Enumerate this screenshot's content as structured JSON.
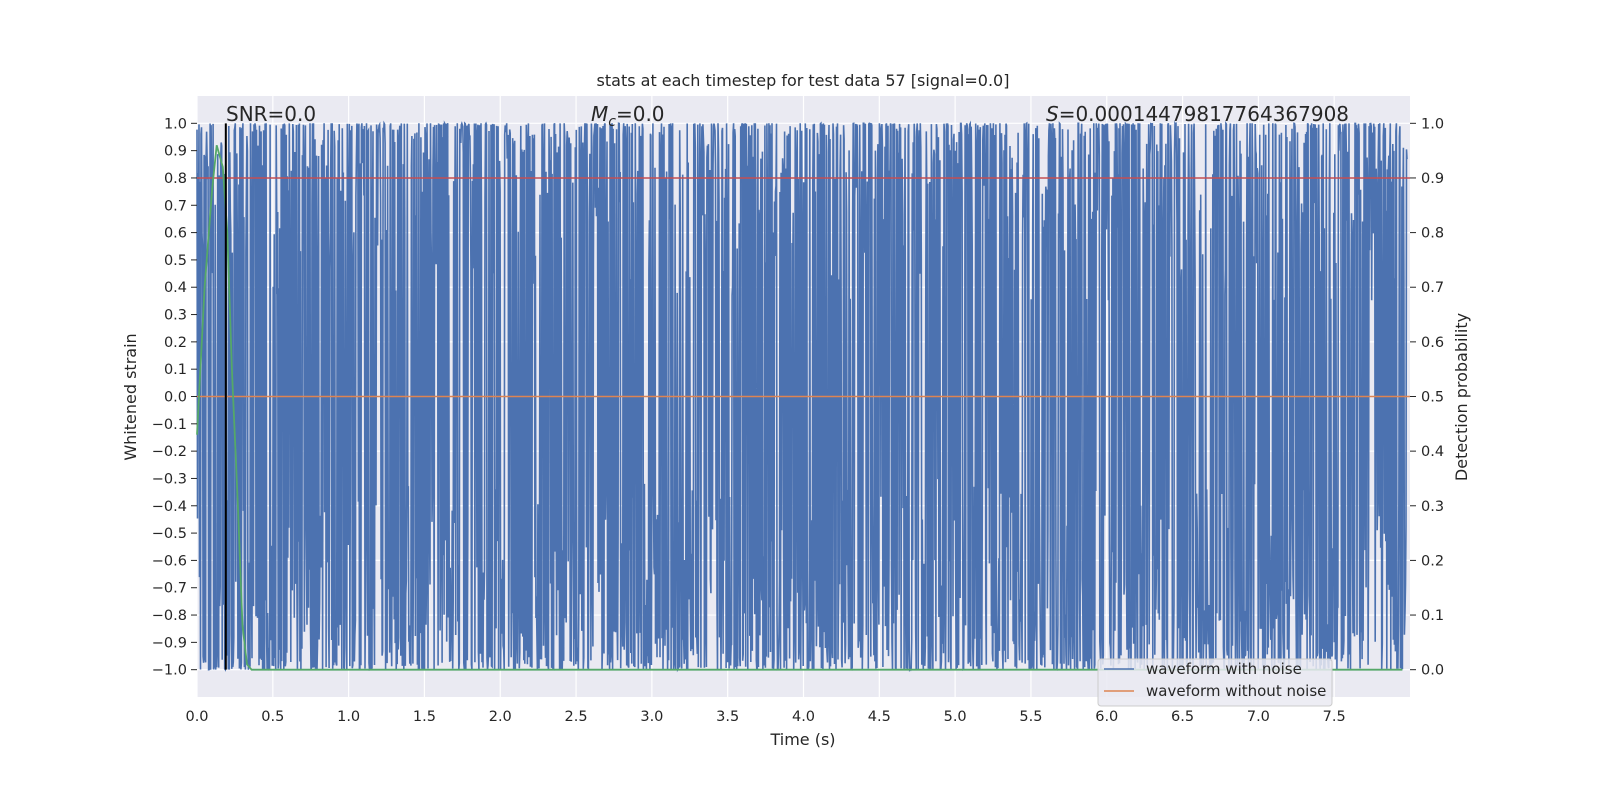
{
  "chart_data": {
    "type": "line",
    "title": "stats at each timestep for test data 57 [signal=0.0]",
    "xlabel": "Time (s)",
    "ylabel": "Whitened strain",
    "y2label": "Detection probability",
    "xlim": [
      0.0,
      8.0
    ],
    "ylim": [
      -1.1,
      1.1
    ],
    "y2lim": [
      -0.05,
      1.05
    ],
    "xticks": [
      "0.0",
      "0.5",
      "1.0",
      "1.5",
      "2.0",
      "2.5",
      "3.0",
      "3.5",
      "4.0",
      "4.5",
      "5.0",
      "5.5",
      "6.0",
      "6.5",
      "7.0",
      "7.5"
    ],
    "yticks": [
      "1.0",
      "0.9",
      "0.8",
      "0.7",
      "0.6",
      "0.5",
      "0.4",
      "0.3",
      "0.2",
      "0.1",
      "0.0",
      "−0.1",
      "−0.2",
      "−0.3",
      "−0.4",
      "−0.5",
      "−0.6",
      "−0.7",
      "−0.8",
      "−0.9",
      "−1.0"
    ],
    "y2ticks": [
      "1.0",
      "0.9",
      "0.8",
      "0.7",
      "0.6",
      "0.5",
      "0.4",
      "0.3",
      "0.2",
      "0.1",
      "0.0"
    ],
    "grid": true,
    "legend_position": "lower-right",
    "annotations": {
      "snr": "SNR=0.0",
      "mc": "=0.0",
      "mc_symbol": "M",
      "mc_sub": "c",
      "s": "=0.00014479817764367908",
      "s_symbol": "S"
    },
    "series": [
      {
        "name": "waveform with noise",
        "color": "#4c72b0",
        "description_values": "dense noise spanning roughly -1.0 to 1.0 across 0-8 s"
      },
      {
        "name": "waveform without noise",
        "color": "#dd8452",
        "y": 0.0
      },
      {
        "axis": "right",
        "color": "#55a868",
        "x": [
          0.0,
          0.05,
          0.1,
          0.13,
          0.17,
          0.2,
          0.23,
          0.27,
          0.3,
          0.33,
          0.36,
          1.0,
          2.0,
          3.0,
          4.0,
          5.0,
          6.0,
          7.0,
          7.95
        ],
        "y": [
          0.43,
          0.7,
          0.88,
          0.96,
          0.92,
          0.8,
          0.55,
          0.3,
          0.08,
          0.01,
          0.0,
          0.0,
          0.0,
          0.0,
          0.0,
          0.0,
          0.0,
          0.0,
          0.0
        ]
      }
    ],
    "threshold_line": {
      "axis": "right",
      "y": 0.9,
      "color": "#c44e52"
    },
    "vertical_line": {
      "x": 0.19,
      "color": "#000000"
    }
  }
}
